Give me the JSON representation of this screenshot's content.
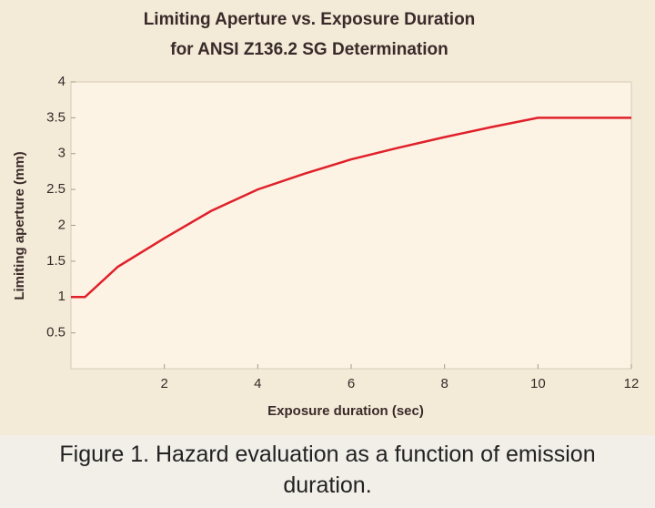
{
  "chart_data": {
    "type": "line",
    "title": [
      "Limiting Aperture vs. Exposure Duration",
      "for ANSI Z136.2 SG Determination"
    ],
    "x_label": "Exposure duration (sec)",
    "y_label": "Limiting aperture (mm)",
    "x": [
      0,
      0.3,
      1,
      2,
      3,
      4,
      5,
      6,
      7,
      8,
      9,
      10,
      12
    ],
    "values": [
      1,
      1,
      1.42,
      1.82,
      2.2,
      2.5,
      2.72,
      2.92,
      3.08,
      3.23,
      3.37,
      3.5,
      3.5
    ],
    "color": "#e0202a",
    "xlim": [
      0,
      12
    ],
    "xticks": [
      2,
      4,
      6,
      8,
      10,
      12
    ],
    "ylim": [
      0,
      4
    ],
    "yticks": [
      0.5,
      1,
      1.5,
      2,
      2.5,
      3,
      3.5,
      4
    ],
    "grid": false
  },
  "caption": "Figure 1. Hazard evaluation as a function of emission duration."
}
